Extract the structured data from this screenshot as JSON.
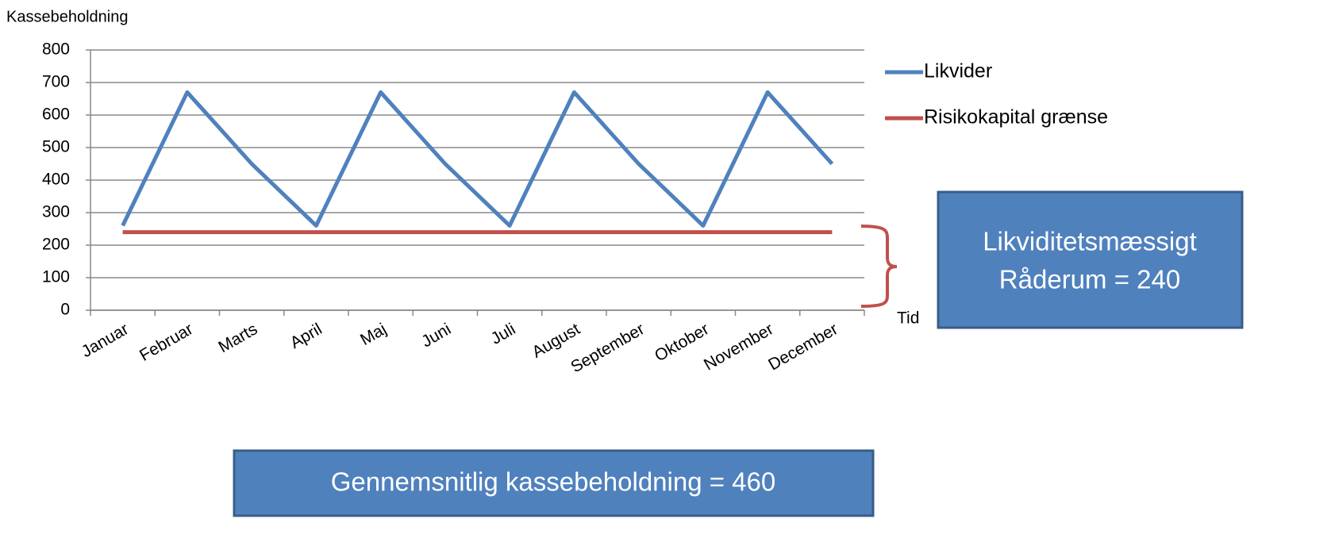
{
  "chart_data": {
    "type": "line",
    "y_label": "Kassebeholdning",
    "x_label": "Tid",
    "categories": [
      "Januar",
      "Februar",
      "Marts",
      "April",
      "Maj",
      "Juni",
      "Juli",
      "August",
      "September",
      "Oktober",
      "November",
      "December"
    ],
    "series": [
      {
        "name": "Likvider",
        "color": "#4f81bd",
        "values": [
          260,
          670,
          450,
          260,
          670,
          450,
          260,
          670,
          450,
          260,
          670,
          450
        ]
      },
      {
        "name": "Risikokapital grænse",
        "color": "#c0504d",
        "values": [
          240,
          240,
          240,
          240,
          240,
          240,
          240,
          240,
          240,
          240,
          240,
          240
        ]
      }
    ],
    "ylim": [
      0,
      800
    ],
    "yticks": [
      0,
      100,
      200,
      300,
      400,
      500,
      600,
      700,
      800
    ],
    "grid": true,
    "legend": "right",
    "annotations": [
      {
        "lines": [
          "Likviditetsmæssigt",
          "Råderum = 240"
        ]
      },
      {
        "lines": [
          "Gennemsnitlig kassebeholdning = 460"
        ]
      }
    ]
  }
}
